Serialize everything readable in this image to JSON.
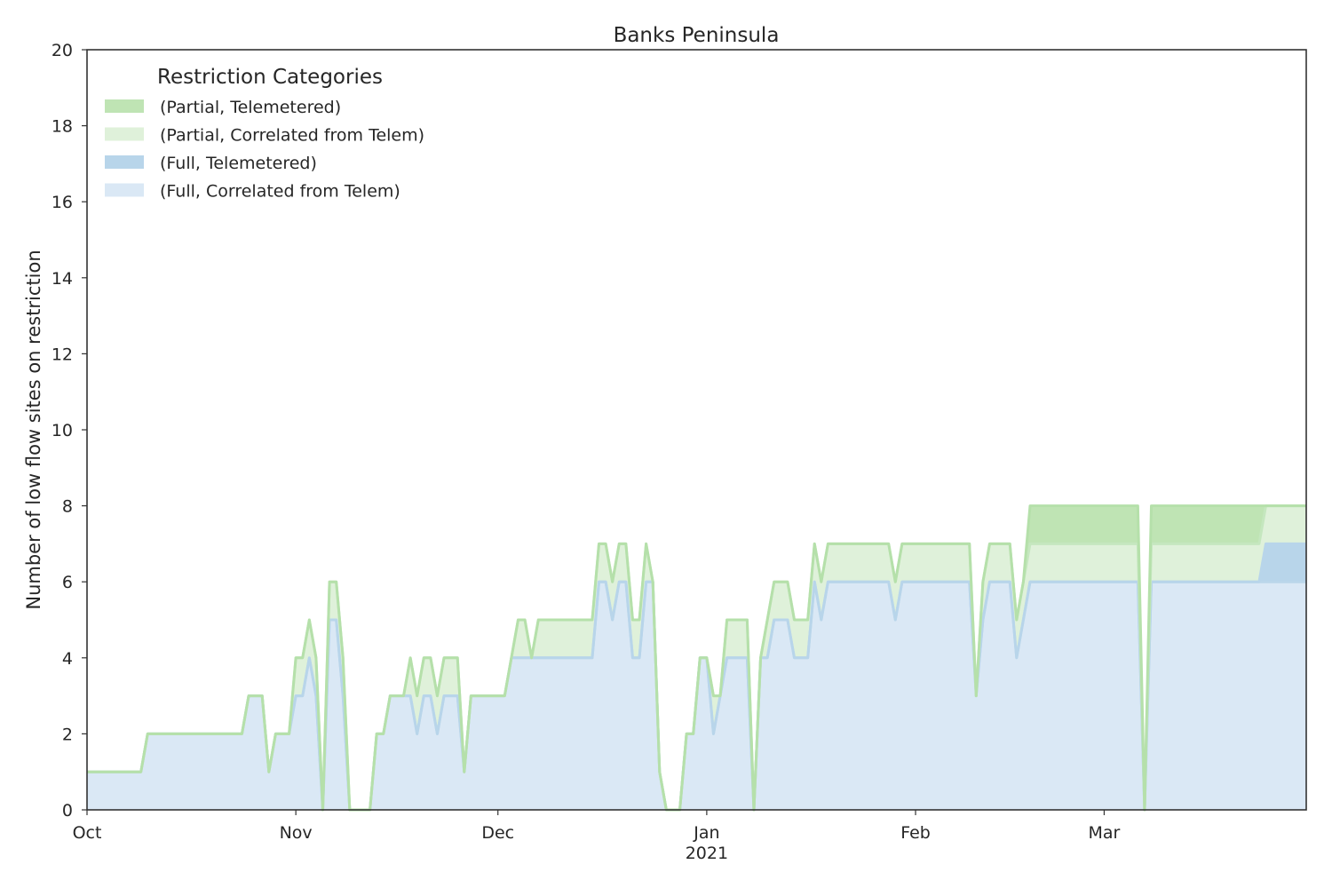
{
  "chart_data": {
    "type": "area",
    "stacked": true,
    "title": "Banks Peninsula",
    "xlabel": "",
    "ylabel": "Number of low flow sites on restriction",
    "ylim": [
      0,
      20
    ],
    "yticks": [
      0,
      2,
      4,
      6,
      8,
      10,
      12,
      14,
      16,
      18,
      20
    ],
    "xlim": [
      "2020-10-01",
      "2021-03-31"
    ],
    "xticks": [
      {
        "date": "2020-10-01",
        "label": "Oct"
      },
      {
        "date": "2020-11-01",
        "label": "Nov"
      },
      {
        "date": "2020-12-01",
        "label": "Dec"
      },
      {
        "date": "2021-01-01",
        "label": "Jan"
      },
      {
        "date": "2021-02-01",
        "label": "Feb"
      },
      {
        "date": "2021-03-01",
        "label": "Mar"
      }
    ],
    "xtick_sublabel": {
      "date": "2021-01-01",
      "label": "2021"
    },
    "grid": false,
    "legend": {
      "title": "Restriction Categories",
      "placement": "top-left"
    },
    "series": [
      {
        "name": "(Full, Correlated from Telem)",
        "color": "#dae8f5",
        "line_color": "#bad6ea",
        "values": [
          [
            0,
            1
          ],
          [
            8,
            1
          ],
          [
            9,
            2
          ],
          [
            23,
            2
          ],
          [
            24,
            3
          ],
          [
            26,
            3
          ],
          [
            27,
            1
          ],
          [
            28,
            2
          ],
          [
            30,
            2
          ],
          [
            31,
            3
          ],
          [
            32,
            3
          ],
          [
            33,
            4
          ],
          [
            34,
            3
          ],
          [
            35,
            0
          ],
          [
            36,
            5
          ],
          [
            38,
            3
          ],
          [
            39,
            0
          ],
          [
            42,
            0
          ],
          [
            43,
            2
          ],
          [
            44,
            2
          ],
          [
            45,
            3
          ],
          [
            47,
            3
          ],
          [
            48,
            3
          ],
          [
            49,
            2
          ],
          [
            50,
            3
          ],
          [
            51,
            3
          ],
          [
            52,
            2
          ],
          [
            53,
            3
          ],
          [
            54,
            3
          ],
          [
            56,
            1
          ],
          [
            57,
            3
          ],
          [
            62,
            3
          ],
          [
            63,
            4
          ],
          [
            75,
            4
          ],
          [
            76,
            6
          ],
          [
            77,
            6
          ],
          [
            78,
            5
          ],
          [
            79,
            6
          ],
          [
            80,
            6
          ],
          [
            81,
            4
          ],
          [
            82,
            4
          ],
          [
            83,
            6
          ],
          [
            85,
            1
          ],
          [
            86,
            0
          ],
          [
            88,
            0
          ],
          [
            89,
            2
          ],
          [
            91,
            4
          ],
          [
            92,
            4
          ],
          [
            93,
            2
          ],
          [
            94,
            3
          ],
          [
            95,
            4
          ],
          [
            98,
            4
          ],
          [
            99,
            0
          ],
          [
            100,
            4
          ],
          [
            101,
            4
          ],
          [
            102,
            5
          ],
          [
            104,
            5
          ],
          [
            105,
            4
          ],
          [
            106,
            4
          ],
          [
            108,
            6
          ],
          [
            109,
            5
          ],
          [
            110,
            6
          ],
          [
            119,
            6
          ],
          [
            120,
            5
          ],
          [
            121,
            6
          ],
          [
            131,
            6
          ],
          [
            132,
            3
          ],
          [
            133,
            5
          ],
          [
            134,
            6
          ],
          [
            137,
            6
          ],
          [
            138,
            4
          ],
          [
            139,
            5
          ],
          [
            140,
            6
          ],
          [
            156,
            6
          ],
          [
            157,
            0
          ],
          [
            158,
            6
          ],
          [
            174,
            6
          ],
          [
            175,
            6
          ],
          [
            180,
            6
          ]
        ]
      },
      {
        "name": "(Full, Telemetered)",
        "color": "#b8d5ea",
        "line_color": "#b8d5ea",
        "values": [
          [
            0,
            0
          ],
          [
            174,
            0
          ],
          [
            175,
            1
          ],
          [
            180,
            1
          ]
        ]
      },
      {
        "name": "(Partial, Correlated from Telem)",
        "color": "#dff1da",
        "line_color": "#c5e7bf",
        "values": [
          [
            0,
            0
          ],
          [
            31,
            1
          ],
          [
            32,
            1
          ],
          [
            33,
            1
          ],
          [
            34,
            1
          ],
          [
            35,
            0
          ],
          [
            36,
            1
          ],
          [
            38,
            1
          ],
          [
            39,
            0
          ],
          [
            48,
            1
          ],
          [
            49,
            1
          ],
          [
            50,
            1
          ],
          [
            51,
            1
          ],
          [
            52,
            1
          ],
          [
            53,
            1
          ],
          [
            54,
            1
          ],
          [
            55,
            1
          ],
          [
            56,
            0
          ],
          [
            63,
            0
          ],
          [
            64,
            1
          ],
          [
            65,
            1
          ],
          [
            66,
            0
          ],
          [
            67,
            1
          ],
          [
            75,
            1
          ],
          [
            76,
            1
          ],
          [
            77,
            1
          ],
          [
            78,
            1
          ],
          [
            79,
            1
          ],
          [
            80,
            1
          ],
          [
            81,
            1
          ],
          [
            82,
            1
          ],
          [
            83,
            1
          ],
          [
            84,
            0
          ],
          [
            93,
            1
          ],
          [
            94,
            0
          ],
          [
            95,
            1
          ],
          [
            98,
            1
          ],
          [
            99,
            0
          ],
          [
            100,
            0
          ],
          [
            101,
            1
          ],
          [
            104,
            1
          ],
          [
            105,
            1
          ],
          [
            106,
            1
          ],
          [
            107,
            1
          ],
          [
            108,
            1
          ],
          [
            109,
            1
          ],
          [
            110,
            1
          ],
          [
            119,
            1
          ],
          [
            120,
            1
          ],
          [
            121,
            1
          ],
          [
            131,
            1
          ],
          [
            132,
            0
          ],
          [
            133,
            1
          ],
          [
            137,
            1
          ],
          [
            138,
            1
          ],
          [
            139,
            1
          ],
          [
            140,
            1
          ],
          [
            156,
            1
          ],
          [
            157,
            0
          ],
          [
            158,
            1
          ],
          [
            174,
            1
          ],
          [
            175,
            1
          ],
          [
            180,
            1
          ]
        ]
      },
      {
        "name": "(Partial, Telemetered)",
        "color": "#bfe4b4",
        "line_color": "#b5e0aa",
        "values": [
          [
            0,
            0
          ],
          [
            139,
            0
          ],
          [
            140,
            1
          ],
          [
            156,
            1
          ],
          [
            157,
            0
          ],
          [
            158,
            1
          ],
          [
            174,
            1
          ],
          [
            175,
            0
          ],
          [
            180,
            0
          ]
        ]
      }
    ]
  }
}
